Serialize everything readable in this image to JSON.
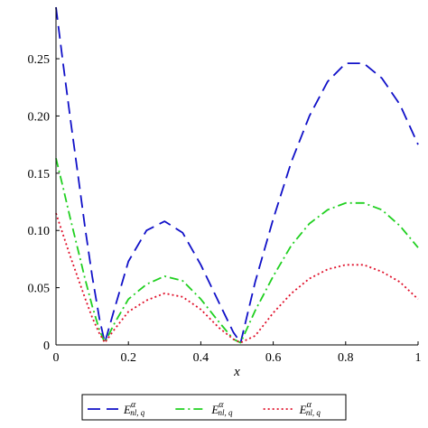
{
  "chart_data": {
    "type": "line",
    "xlabel": "x",
    "ylabel": "",
    "xlim": [
      0,
      1
    ],
    "ylim": [
      0,
      0.295
    ],
    "grid": false,
    "legend_position": "bottom",
    "x_ticks": [
      {
        "value": 0,
        "label": "0"
      },
      {
        "value": 0.2,
        "label": "0.2"
      },
      {
        "value": 0.4,
        "label": "0.4"
      },
      {
        "value": 0.6,
        "label": "0.6"
      },
      {
        "value": 0.8,
        "label": "0.8"
      },
      {
        "value": 1,
        "label": "1"
      }
    ],
    "y_ticks": [
      {
        "value": 0,
        "label": "0"
      },
      {
        "value": 0.05,
        "label": "0.05"
      },
      {
        "value": 0.1,
        "label": "0.10"
      },
      {
        "value": 0.15,
        "label": "0.15"
      },
      {
        "value": 0.2,
        "label": "0.20"
      },
      {
        "value": 0.25,
        "label": "0.25"
      }
    ],
    "x": [
      0,
      0.02,
      0.04,
      0.06,
      0.08,
      0.1,
      0.12,
      0.135,
      0.16,
      0.2,
      0.25,
      0.3,
      0.35,
      0.4,
      0.45,
      0.49,
      0.51,
      0.55,
      0.6,
      0.65,
      0.7,
      0.75,
      0.8,
      0.85,
      0.9,
      0.95,
      1
    ],
    "series": [
      {
        "legend": {
          "base": "E",
          "sup": "α",
          "sub": "nl, q"
        },
        "color": "#1010c8",
        "dash": "14,7",
        "values": [
          0.295,
          0.245,
          0.197,
          0.15,
          0.103,
          0.06,
          0.023,
          0.002,
          0.03,
          0.073,
          0.1,
          0.108,
          0.098,
          0.07,
          0.037,
          0.011,
          0.002,
          0.055,
          0.11,
          0.16,
          0.2,
          0.23,
          0.246,
          0.246,
          0.233,
          0.21,
          0.175
        ]
      },
      {
        "legend": {
          "base": "E",
          "sup": "α",
          "sub": "nl, q"
        },
        "color": "#20d020",
        "dash": "10,4,2,4",
        "values": [
          0.163,
          0.137,
          0.11,
          0.084,
          0.058,
          0.034,
          0.013,
          0.002,
          0.018,
          0.04,
          0.053,
          0.06,
          0.056,
          0.04,
          0.02,
          0.005,
          0.002,
          0.03,
          0.06,
          0.087,
          0.106,
          0.118,
          0.124,
          0.124,
          0.118,
          0.104,
          0.085
        ]
      },
      {
        "legend": {
          "base": "E",
          "sup": "α",
          "sub": "nl, q"
        },
        "color": "#e0102a",
        "dash": "2,3",
        "values": [
          0.115,
          0.096,
          0.077,
          0.059,
          0.041,
          0.024,
          0.01,
          0.002,
          0.013,
          0.029,
          0.039,
          0.045,
          0.042,
          0.031,
          0.015,
          0.005,
          0.002,
          0.008,
          0.028,
          0.045,
          0.058,
          0.066,
          0.07,
          0.07,
          0.064,
          0.055,
          0.04
        ]
      }
    ]
  }
}
